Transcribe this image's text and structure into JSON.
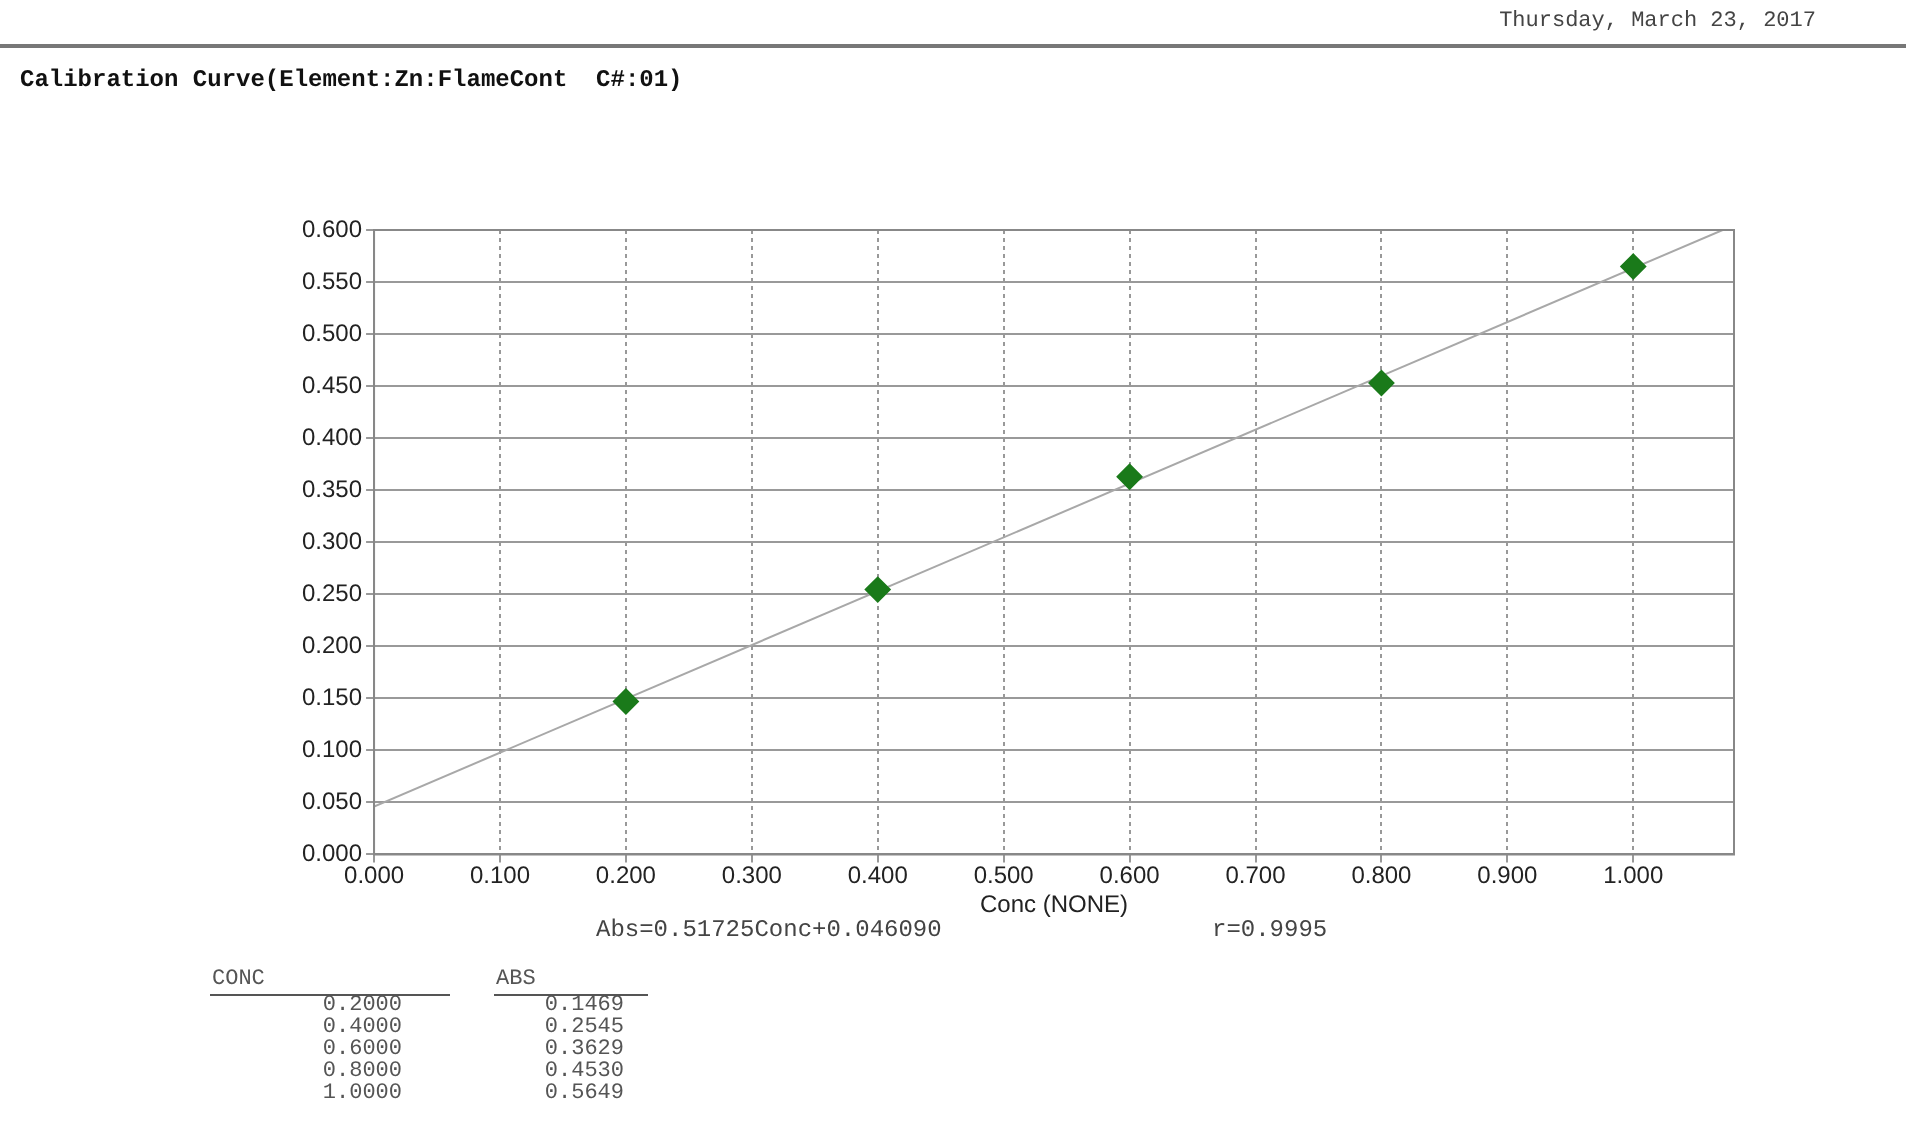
{
  "chart_data": {
    "type": "scatter",
    "title": "Calibration Curve(Element:Zn:FlameCont  C#:01)",
    "xlabel": "Conc (NONE)",
    "annotations": [
      "Thursday, March 23, 2017",
      "Abs=0.51725Conc+0.046090",
      "r=0.9995",
      "CONC",
      "ABS",
      "0.2000",
      "0.4000",
      "0.6000",
      "0.8000",
      "1.0000",
      "0.1469",
      "0.2545",
      "0.3629",
      "0.4530",
      "0.5649"
    ],
    "series": [
      {
        "color": "#1a7a1a",
        "marker": "diamond",
        "x": [
          0.2,
          0.4,
          0.6,
          0.8,
          1.0
        ],
        "values": [
          0.1469,
          0.2545,
          0.3629,
          0.453,
          0.5649
        ]
      },
      {
        "type": "line",
        "color": "#a8a8a8",
        "marker": "none",
        "x": [
          0,
          1.071
        ],
        "values": [
          0.046,
          0.6
        ]
      }
    ],
    "xlim": [
      0,
      1.08
    ],
    "xticks": [
      {
        "value": 0,
        "label": "0.000"
      },
      {
        "value": 0.1,
        "label": "0.100"
      },
      {
        "value": 0.2,
        "label": "0.200"
      },
      {
        "value": 0.3,
        "label": "0.300"
      },
      {
        "value": 0.4,
        "label": "0.400"
      },
      {
        "value": 0.5,
        "label": "0.500"
      },
      {
        "value": 0.6,
        "label": "0.600"
      },
      {
        "value": 0.7,
        "label": "0.700"
      },
      {
        "value": 0.8,
        "label": "0.800"
      },
      {
        "value": 0.9,
        "label": "0.900"
      },
      {
        "value": 1,
        "label": "1.000"
      }
    ],
    "ylim": [
      0,
      0.6
    ],
    "yticks": [
      {
        "value": 0,
        "label": "0.000"
      },
      {
        "value": 0.05,
        "label": "0.050"
      },
      {
        "value": 0.1,
        "label": "0.100"
      },
      {
        "value": 0.15,
        "label": "0.150"
      },
      {
        "value": 0.2,
        "label": "0.200"
      },
      {
        "value": 0.25,
        "label": "0.250"
      },
      {
        "value": 0.3,
        "label": "0.300"
      },
      {
        "value": 0.35,
        "label": "0.350"
      },
      {
        "value": 0.4,
        "label": "0.400"
      },
      {
        "value": 0.45,
        "label": "0.450"
      },
      {
        "value": 0.5,
        "label": "0.500"
      },
      {
        "value": 0.55,
        "label": "0.550"
      },
      {
        "value": 0.6,
        "label": "0.600"
      }
    ],
    "grid": true
  }
}
